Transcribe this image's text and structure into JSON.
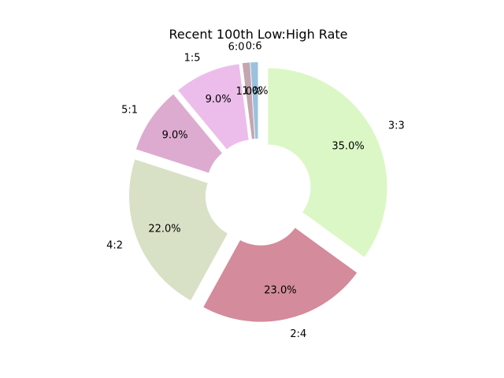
{
  "chart_data": {
    "type": "pie",
    "style": "donut",
    "title": "Recent 100th Low:High Rate",
    "start": "top",
    "direction": "clockwise",
    "slices": [
      {
        "label": "3:3",
        "value": 35.0,
        "pct_label": "35.0%",
        "color": "#dbf7c5"
      },
      {
        "label": "2:4",
        "value": 23.0,
        "pct_label": "23.0%",
        "color": "#d48b9b"
      },
      {
        "label": "4:2",
        "value": 22.0,
        "pct_label": "22.0%",
        "color": "#d8e1c5"
      },
      {
        "label": "5:1",
        "value": 9.0,
        "pct_label": "9.0%",
        "color": "#ddabd0"
      },
      {
        "label": "1:5",
        "value": 9.0,
        "pct_label": "9.0%",
        "color": "#ecbdea"
      },
      {
        "label": "6:0",
        "value": 1.0,
        "pct_label": "1.0%",
        "color": "#c4a6b0"
      },
      {
        "label": "0:6",
        "value": 1.0,
        "pct_label": "1.0%",
        "color": "#9ac2df"
      }
    ]
  }
}
